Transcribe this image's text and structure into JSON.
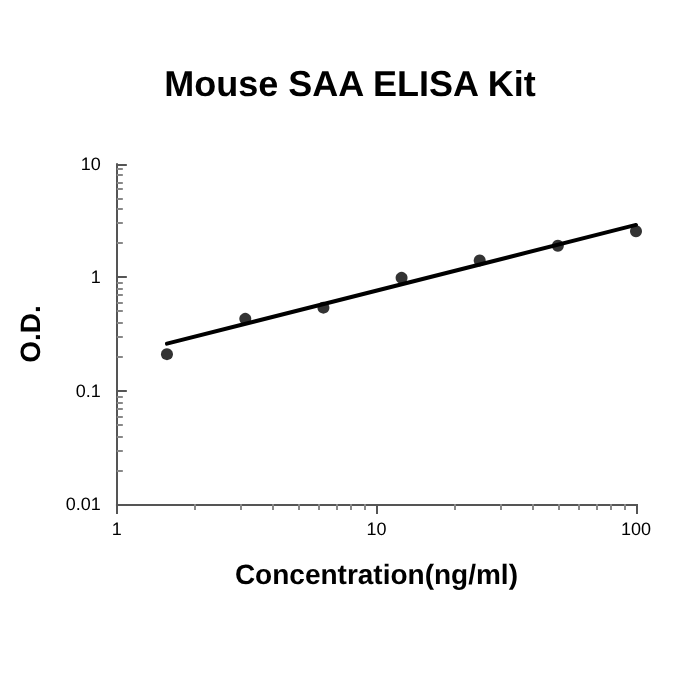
{
  "chart_data": {
    "type": "scatter",
    "title": "Mouse SAA ELISA Kit",
    "xlabel": "Concentration(ng/ml)",
    "ylabel": "O.D.",
    "log": "xy",
    "xlim": [
      1,
      100
    ],
    "xticks": [
      1,
      10,
      100
    ],
    "ylim": [
      0.01,
      10
    ],
    "yticks": [
      0.01,
      0.1,
      1,
      10
    ],
    "grid": false,
    "marker": "circle",
    "x": [
      1.56,
      3.125,
      6.25,
      12.5,
      25,
      50,
      100
    ],
    "series": [
      {
        "color": "#000000",
        "values": [
          0.21,
          0.43,
          0.54,
          0.99,
          1.41,
          1.9,
          2.55
        ]
      },
      {
        "type": "line",
        "color": "#000000",
        "x": [
          1.56,
          100
        ],
        "values": [
          0.26,
          2.9
        ],
        "marker": "none",
        "line_style": "solid"
      }
    ]
  }
}
